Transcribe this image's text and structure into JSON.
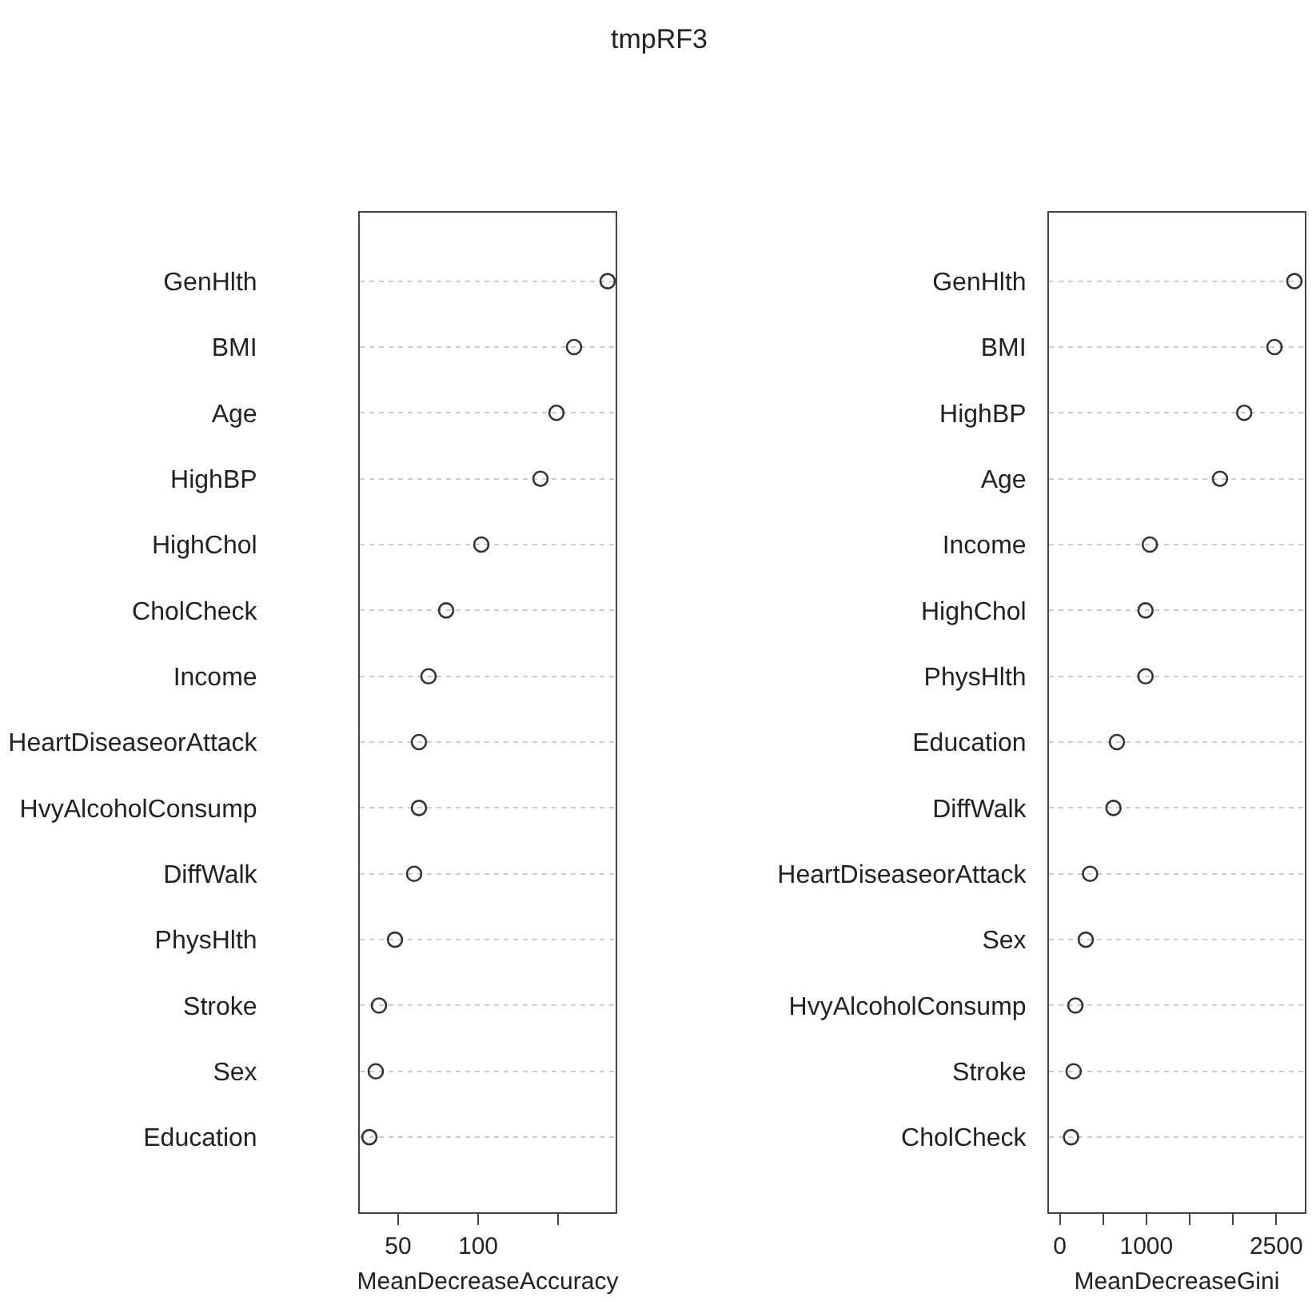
{
  "chart_data": [
    {
      "type": "scatter",
      "orientation": "horizontal",
      "title": "tmpRF3",
      "xlabel": "MeanDecreaseAccuracy",
      "marker": "circle",
      "grid": "y",
      "categories": [
        "GenHlth",
        "BMI",
        "Age",
        "HighBP",
        "HighChol",
        "CholCheck",
        "Income",
        "HeartDiseaseorAttack",
        "HvyAlcoholConsump",
        "DiffWalk",
        "PhysHlth",
        "Stroke",
        "Sex",
        "Education"
      ],
      "series": [
        {
          "color": "#333333",
          "values": [
            181,
            160,
            149,
            139,
            102,
            80,
            69,
            63,
            63,
            60,
            48,
            38,
            36,
            32
          ]
        }
      ],
      "xlim": [
        26,
        186
      ],
      "xticks": [
        50,
        100,
        {
          "value": 150,
          "label": null
        }
      ]
    },
    {
      "type": "scatter",
      "orientation": "horizontal",
      "xlabel": "MeanDecreaseGini",
      "marker": "circle",
      "grid": "y",
      "categories": [
        "GenHlth",
        "BMI",
        "HighBP",
        "Age",
        "Income",
        "HighChol",
        "PhysHlth",
        "Education",
        "DiffWalk",
        "HeartDiseaseorAttack",
        "Sex",
        "HvyAlcoholConsump",
        "Stroke",
        "CholCheck"
      ],
      "series": [
        {
          "color": "#333333",
          "values": [
            2710,
            2480,
            2130,
            1850,
            1040,
            990,
            990,
            660,
            620,
            350,
            300,
            180,
            160,
            130
          ]
        }
      ],
      "xlim": [
        -125,
        2830
      ],
      "xticks": [
        0,
        {
          "value": 500,
          "label": null
        },
        1000,
        {
          "value": 1500,
          "label": null
        },
        {
          "value": 2000,
          "label": null
        },
        2500
      ]
    }
  ]
}
